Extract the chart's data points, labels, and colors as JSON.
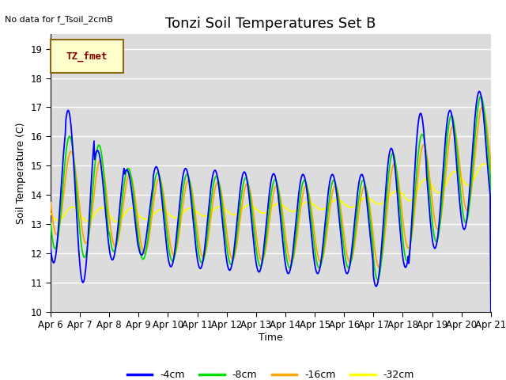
{
  "title": "Tonzi Soil Temperatures Set B",
  "xlabel": "Time",
  "ylabel": "Soil Temperature (C)",
  "no_data_text": "No data for f_Tsoil_2cmB",
  "legend_label_text": "TZ_fmet",
  "ylim": [
    10.0,
    19.5
  ],
  "yticks": [
    10.0,
    11.0,
    12.0,
    13.0,
    14.0,
    15.0,
    16.0,
    17.0,
    18.0,
    19.0
  ],
  "x_tick_labels": [
    "Apr 6",
    "Apr 7",
    "Apr 8",
    "Apr 9",
    "Apr 10",
    "Apr 11",
    "Apr 12",
    "Apr 13",
    "Apr 14",
    "Apr 15",
    "Apr 16",
    "Apr 17",
    "Apr 18",
    "Apr 19",
    "Apr 20",
    "Apr 21"
  ],
  "series_colors": [
    "blue",
    "#00dd00",
    "orange",
    "yellow"
  ],
  "series_labels": [
    "-4cm",
    "-8cm",
    "-16cm",
    "-32cm"
  ],
  "line_width": 1.3,
  "background_color": "#dcdcdc",
  "grid_color": "white",
  "title_fontsize": 13,
  "axis_label_fontsize": 9,
  "tick_label_fontsize": 8.5,
  "legend_box_color": "#ffffcc",
  "legend_box_edge": "#8B6914",
  "legend_text_color": "#880000"
}
